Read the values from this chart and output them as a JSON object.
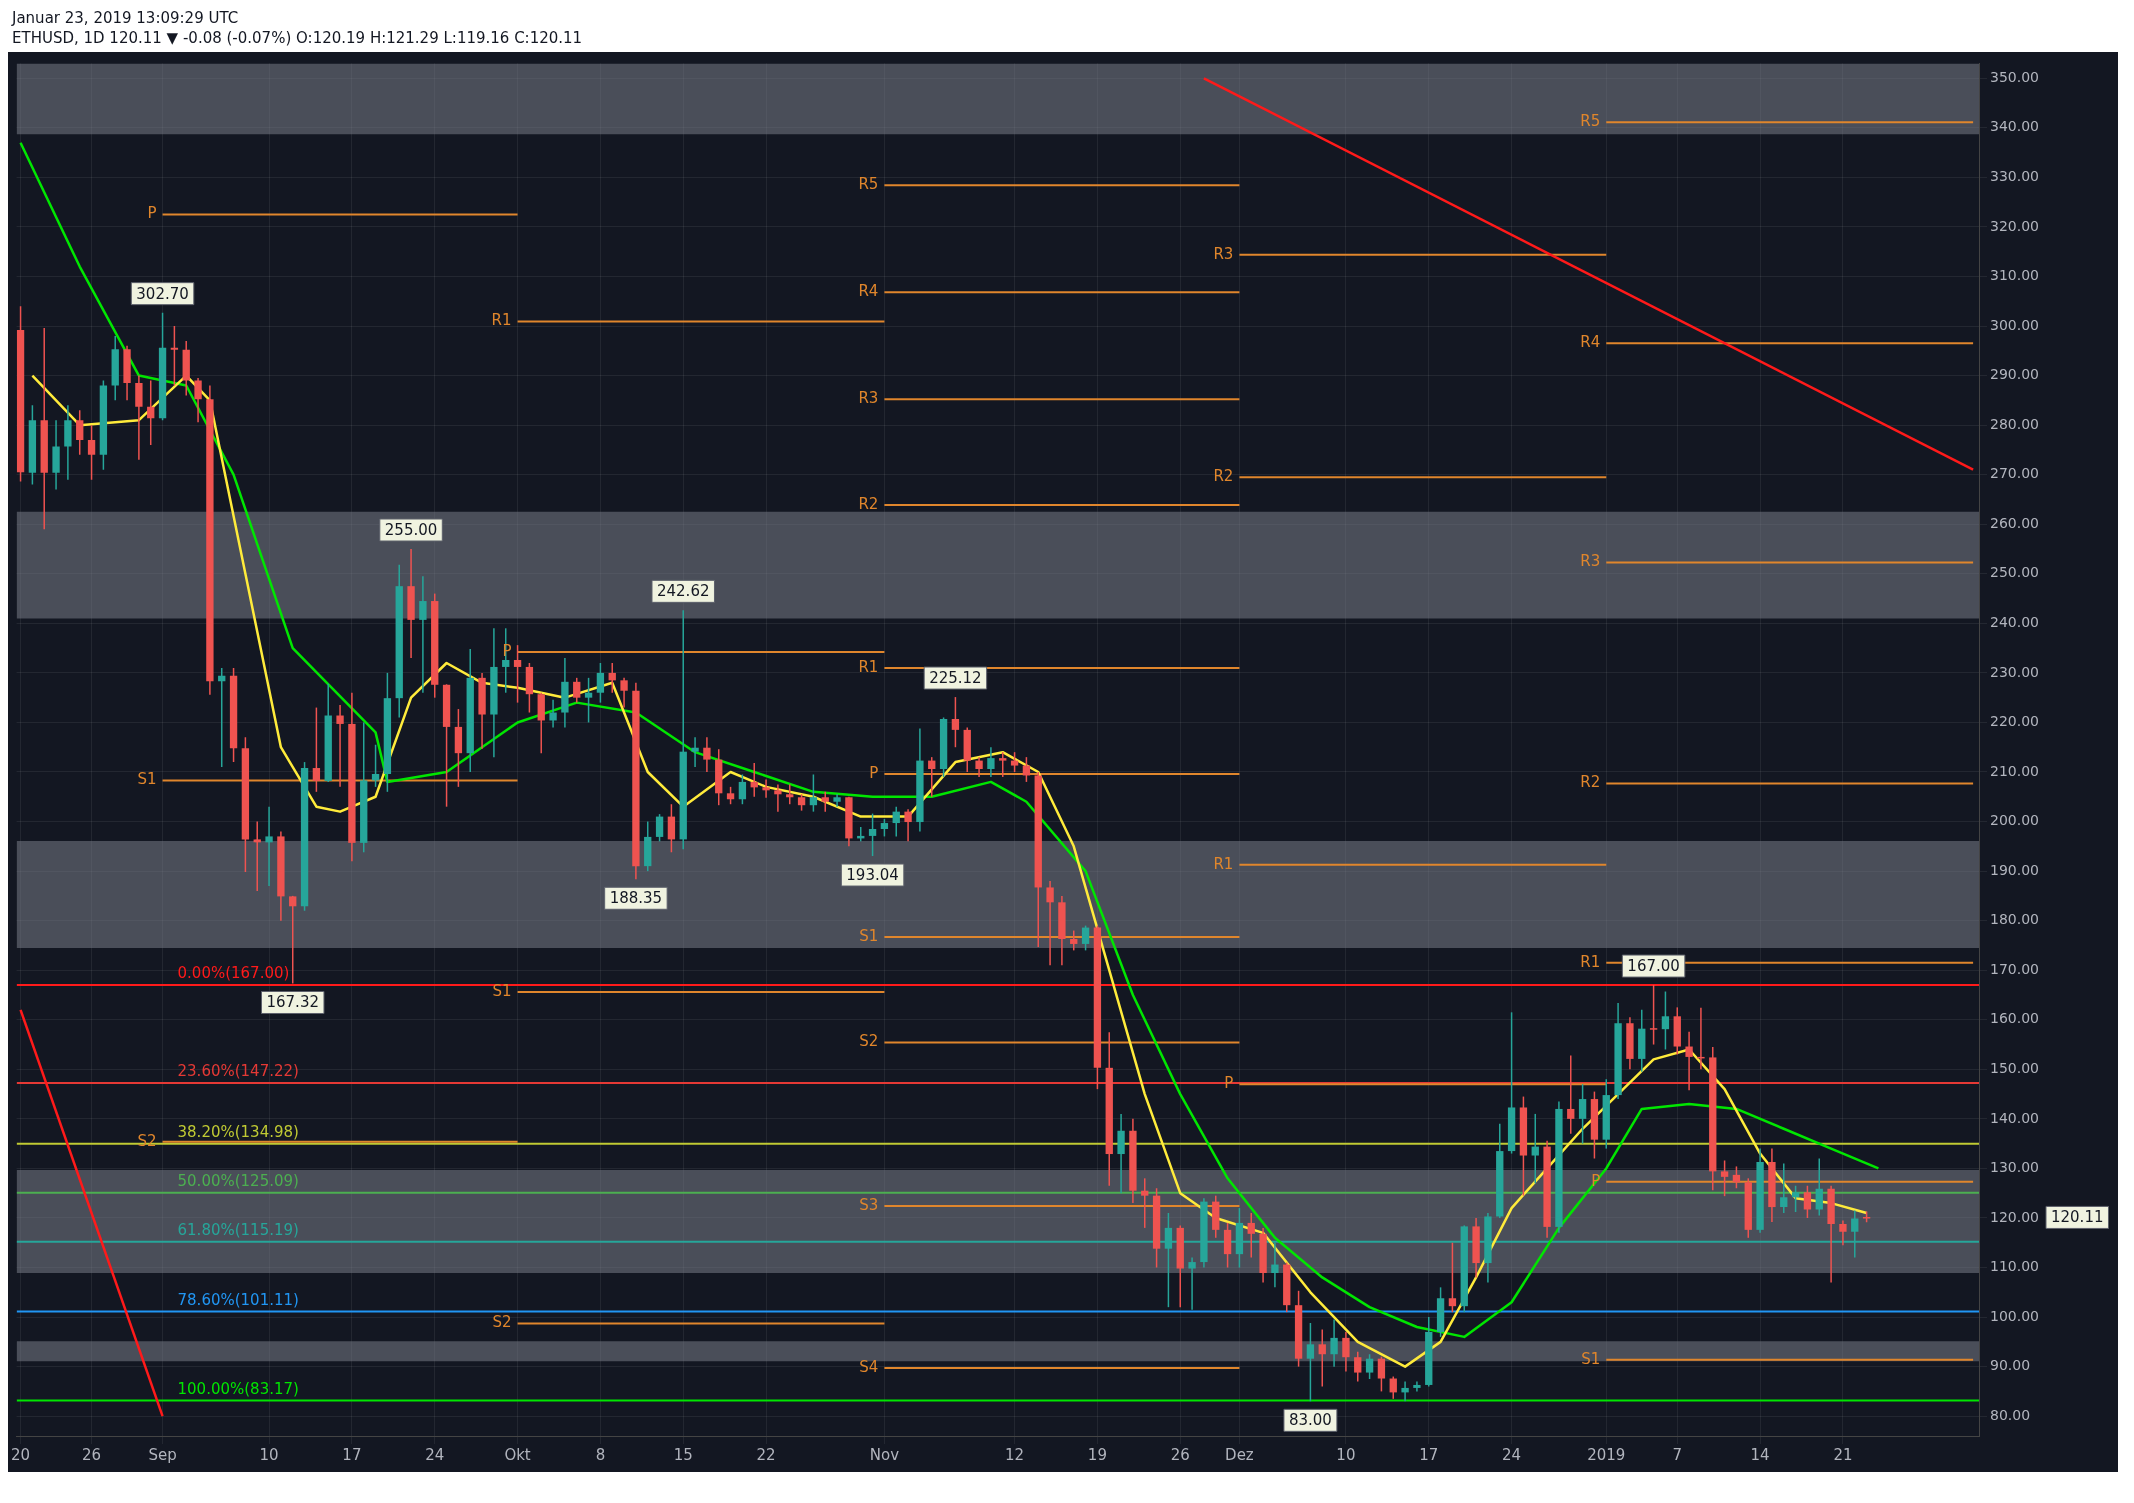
{
  "chart_data": {
    "type": "candlestick",
    "title": "Januar 23, 2019 13:09:29 UTC",
    "subtitle": "ETHUSD, 1D 120.11 ▼ -0.08 (-0.07%) O:120.19 H:121.29 L:119.16 C:120.11",
    "x": [
      "2018-08-20",
      "2018-08-21",
      "2018-08-22",
      "2018-08-23",
      "2018-08-24",
      "2018-08-25",
      "2018-08-26",
      "2018-08-27",
      "2018-08-28",
      "2018-08-29",
      "2018-08-30",
      "2018-08-31",
      "2018-09-01",
      "2018-09-02",
      "2018-09-03",
      "2018-09-04",
      "2018-09-05",
      "2018-09-06",
      "2018-09-07",
      "2018-09-08",
      "2018-09-09",
      "2018-09-10",
      "2018-09-11",
      "2018-09-12",
      "2018-09-13",
      "2018-09-14",
      "2018-09-15",
      "2018-09-16",
      "2018-09-17",
      "2018-09-18",
      "2018-09-19",
      "2018-09-20",
      "2018-09-21",
      "2018-09-22",
      "2018-09-23",
      "2018-09-24",
      "2018-09-25",
      "2018-09-26",
      "2018-09-27",
      "2018-09-28",
      "2018-09-29",
      "2018-09-30",
      "2018-10-01",
      "2018-10-02",
      "2018-10-03",
      "2018-10-04",
      "2018-10-05",
      "2018-10-06",
      "2018-10-07",
      "2018-10-08",
      "2018-10-09",
      "2018-10-10",
      "2018-10-11",
      "2018-10-12",
      "2018-10-13",
      "2018-10-14",
      "2018-10-15",
      "2018-10-16",
      "2018-10-17",
      "2018-10-18",
      "2018-10-19",
      "2018-10-20",
      "2018-10-21",
      "2018-10-22",
      "2018-10-23",
      "2018-10-24",
      "2018-10-25",
      "2018-10-26",
      "2018-10-27",
      "2018-10-28",
      "2018-10-29",
      "2018-10-30",
      "2018-10-31",
      "2018-11-01",
      "2018-11-02",
      "2018-11-03",
      "2018-11-04",
      "2018-11-05",
      "2018-11-06",
      "2018-11-07",
      "2018-11-08",
      "2018-11-09",
      "2018-11-10",
      "2018-11-11",
      "2018-11-12",
      "2018-11-13",
      "2018-11-14",
      "2018-11-15",
      "2018-11-16",
      "2018-11-17",
      "2018-11-18",
      "2018-11-19",
      "2018-11-20",
      "2018-11-21",
      "2018-11-22",
      "2018-11-23",
      "2018-11-24",
      "2018-11-25",
      "2018-11-26",
      "2018-11-27",
      "2018-11-28",
      "2018-11-29",
      "2018-11-30",
      "2018-12-01",
      "2018-12-02",
      "2018-12-03",
      "2018-12-04",
      "2018-12-05",
      "2018-12-06",
      "2018-12-07",
      "2018-12-08",
      "2018-12-09",
      "2018-12-10",
      "2018-12-11",
      "2018-12-12",
      "2018-12-13",
      "2018-12-14",
      "2018-12-15",
      "2018-12-16",
      "2018-12-17",
      "2018-12-18",
      "2018-12-19",
      "2018-12-20",
      "2018-12-21",
      "2018-12-22",
      "2018-12-23",
      "2018-12-24",
      "2018-12-25",
      "2018-12-26",
      "2018-12-27",
      "2018-12-28",
      "2018-12-29",
      "2018-12-30",
      "2018-12-31",
      "2019-01-01",
      "2019-01-02",
      "2019-01-03",
      "2019-01-04",
      "2019-01-05",
      "2019-01-06",
      "2019-01-07",
      "2019-01-08",
      "2019-01-09",
      "2019-01-10",
      "2019-01-11",
      "2019-01-12",
      "2019-01-13",
      "2019-01-14",
      "2019-01-15",
      "2019-01-16",
      "2019-01-17",
      "2019-01-18",
      "2019-01-19",
      "2019-01-20",
      "2019-01-21",
      "2019-01-22",
      "2019-01-23"
    ],
    "ohlc": [
      [
        299.2,
        304,
        268.6,
        270.5
      ],
      [
        270.4,
        284,
        268,
        281
      ],
      [
        281,
        299.6,
        259,
        270.4
      ],
      [
        270.4,
        281,
        267,
        275.7
      ],
      [
        275.7,
        284,
        269,
        281
      ],
      [
        281,
        283,
        274,
        277
      ],
      [
        277,
        280,
        269,
        274
      ],
      [
        274,
        289,
        271,
        288
      ],
      [
        288,
        298,
        285,
        295.3
      ],
      [
        295.3,
        296,
        285,
        288.5
      ],
      [
        288.5,
        290,
        273,
        283.7
      ],
      [
        283.7,
        289,
        276,
        281.4
      ],
      [
        281.4,
        302.7,
        281,
        295.6
      ],
      [
        295.6,
        300,
        288,
        295.2
      ],
      [
        295.2,
        297,
        286,
        289
      ],
      [
        289,
        289.5,
        280.6,
        285.2
      ],
      [
        285.2,
        288,
        225.6,
        228.3
      ],
      [
        228.3,
        231,
        211,
        229.4
      ],
      [
        229.4,
        231,
        212,
        214.8
      ],
      [
        214.8,
        217,
        189.8,
        196.4
      ],
      [
        196.4,
        200,
        186,
        195.8
      ],
      [
        195.8,
        203,
        187,
        197
      ],
      [
        197,
        198,
        180,
        184.9
      ],
      [
        184.9,
        185,
        167.32,
        182.9
      ],
      [
        182.9,
        212,
        182,
        210.8
      ],
      [
        210.8,
        223,
        206,
        208.2
      ],
      [
        208.2,
        227.8,
        208,
        221.4
      ],
      [
        221.4,
        223.5,
        207,
        219.7
      ],
      [
        219.7,
        226,
        192,
        195.7
      ],
      [
        195.7,
        220,
        193.8,
        208.3
      ],
      [
        208.3,
        215.5,
        207,
        209.6
      ],
      [
        209.6,
        230,
        206,
        224.9
      ],
      [
        224.9,
        251.8,
        221,
        247.5
      ],
      [
        247.5,
        255,
        233,
        240.7
      ],
      [
        240.7,
        249.5,
        226,
        244.5
      ],
      [
        244.5,
        246,
        225,
        227.6
      ],
      [
        227.6,
        227.7,
        203,
        219.1
      ],
      [
        219.1,
        222.7,
        207,
        213.8
      ],
      [
        213.8,
        234.8,
        210,
        229
      ],
      [
        229,
        230,
        214.7,
        221.6
      ],
      [
        221.6,
        239,
        213,
        231.2
      ],
      [
        231.2,
        239,
        226,
        232.6
      ],
      [
        232.6,
        235.6,
        224,
        231.2
      ],
      [
        231.2,
        232,
        222,
        225.7
      ],
      [
        225.7,
        226,
        213.8,
        220.4
      ],
      [
        220.4,
        224.6,
        219,
        222
      ],
      [
        222,
        233,
        219,
        228.2
      ],
      [
        228.2,
        229,
        224,
        225
      ],
      [
        225,
        229,
        220,
        226
      ],
      [
        226,
        232,
        224,
        230
      ],
      [
        230,
        232,
        226,
        228.5
      ],
      [
        228.5,
        229,
        223,
        226.4
      ],
      [
        226.4,
        228,
        188.35,
        191
      ],
      [
        191,
        200,
        190,
        196.9
      ],
      [
        196.9,
        201.5,
        196,
        201
      ],
      [
        201,
        203.5,
        193.8,
        196.4
      ],
      [
        196.4,
        242.62,
        194.4,
        214.1
      ],
      [
        214.1,
        217,
        211,
        214.9
      ],
      [
        214.9,
        217,
        210,
        212.5
      ],
      [
        212.5,
        214.6,
        203.3,
        205.7
      ],
      [
        205.7,
        207,
        203.5,
        204.5
      ],
      [
        204.5,
        209.5,
        203.5,
        208
      ],
      [
        208,
        211.8,
        205,
        206.9
      ],
      [
        206.9,
        208.5,
        204.8,
        206.3
      ],
      [
        206.3,
        207.5,
        202,
        205.5
      ],
      [
        205.5,
        207.5,
        203.5,
        204.9
      ],
      [
        204.9,
        205.5,
        202.2,
        203.3
      ],
      [
        203.3,
        209.5,
        202,
        204.9
      ],
      [
        204.9,
        206,
        202,
        204
      ],
      [
        204,
        205.5,
        203,
        204.9
      ],
      [
        204.9,
        205,
        195,
        196.6
      ],
      [
        196.6,
        198.9,
        196,
        197.1
      ],
      [
        197.1,
        201.6,
        193.04,
        198.5
      ],
      [
        198.5,
        200.5,
        197,
        199.7
      ],
      [
        199.7,
        203,
        197,
        202
      ],
      [
        202,
        202.5,
        196,
        199.9
      ],
      [
        199.9,
        218.8,
        198,
        212.3
      ],
      [
        212.3,
        213,
        205,
        210.6
      ],
      [
        210.6,
        221,
        209,
        220.7
      ],
      [
        220.7,
        225.12,
        215,
        218.5
      ],
      [
        218.5,
        219,
        210,
        212.3
      ],
      [
        212.3,
        213,
        209,
        210.6
      ],
      [
        210.6,
        215,
        209,
        212.8
      ],
      [
        212.8,
        214,
        209,
        212.3
      ],
      [
        212.3,
        214,
        210,
        211.3
      ],
      [
        211.3,
        213,
        208,
        209.3
      ],
      [
        209.3,
        210,
        174.7,
        186.7
      ],
      [
        186.7,
        188,
        171,
        183.7
      ],
      [
        183.7,
        185,
        171,
        176.3
      ],
      [
        176.3,
        178,
        174,
        175.3
      ],
      [
        175.3,
        179,
        174,
        178.6
      ],
      [
        178.6,
        179,
        146,
        150.3
      ],
      [
        150.3,
        157.5,
        126.5,
        132.9
      ],
      [
        132.9,
        141,
        125,
        137.6
      ],
      [
        137.6,
        140,
        123,
        125.5
      ],
      [
        125.5,
        128,
        118,
        124.5
      ],
      [
        124.5,
        126,
        110,
        113.8
      ],
      [
        113.8,
        121,
        102,
        118
      ],
      [
        118,
        118.5,
        102,
        109.8
      ],
      [
        109.8,
        112,
        101.5,
        111.1
      ],
      [
        111.1,
        124,
        110,
        123.3
      ],
      [
        123.3,
        124.5,
        116,
        117.6
      ],
      [
        117.6,
        119,
        110,
        112.7
      ],
      [
        112.7,
        122,
        110,
        119
      ],
      [
        119,
        121,
        112,
        116.8
      ],
      [
        116.8,
        118,
        107,
        108.9
      ],
      [
        108.9,
        115,
        106,
        110.6
      ],
      [
        110.6,
        111,
        101,
        102.4
      ],
      [
        102.4,
        105.3,
        90,
        91.6
      ],
      [
        91.6,
        98.8,
        83,
        94.5
      ],
      [
        94.5,
        97.5,
        86,
        92.5
      ],
      [
        92.5,
        99.5,
        90,
        95.8
      ],
      [
        95.8,
        97,
        89,
        91.9
      ],
      [
        91.9,
        93,
        87,
        88.8
      ],
      [
        88.8,
        92.5,
        87.5,
        91.6
      ],
      [
        91.6,
        92,
        85,
        87.6
      ],
      [
        87.6,
        88,
        83.5,
        84.8
      ],
      [
        84.8,
        87,
        83,
        85.7
      ],
      [
        85.7,
        87,
        85,
        86.3
      ],
      [
        86.3,
        100,
        86,
        97
      ],
      [
        97,
        106,
        96,
        103.8
      ],
      [
        103.8,
        115,
        101,
        102.2
      ],
      [
        102.2,
        118.5,
        101,
        118.3
      ],
      [
        118.3,
        120,
        108,
        110.9
      ],
      [
        110.9,
        121,
        107,
        120.3
      ],
      [
        120.3,
        139,
        120,
        133.5
      ],
      [
        133.5,
        161.5,
        133,
        142.3
      ],
      [
        142.3,
        144.5,
        124.5,
        132.6
      ],
      [
        132.6,
        141,
        127,
        134.4
      ],
      [
        134.4,
        135.6,
        116,
        118.2
      ],
      [
        118.2,
        143.5,
        117,
        142
      ],
      [
        142,
        152.8,
        137,
        140
      ],
      [
        140,
        147,
        135,
        144
      ],
      [
        144,
        145.5,
        132,
        135.8
      ],
      [
        135.8,
        148,
        134,
        144.8
      ],
      [
        144.8,
        163.4,
        144,
        159.3
      ],
      [
        159.3,
        160.5,
        150,
        152.1
      ],
      [
        152.1,
        162,
        149.5,
        158.2
      ],
      [
        158.3,
        167,
        155,
        158.1
      ],
      [
        158.1,
        165.7,
        154,
        160.7
      ],
      [
        160.7,
        162.5,
        153,
        154.6
      ],
      [
        154.6,
        157.6,
        145.8,
        152.5
      ],
      [
        152.5,
        162.4,
        150,
        152.4
      ],
      [
        152.4,
        154.5,
        125.6,
        129.4
      ],
      [
        129.4,
        131.6,
        124.4,
        128.3
      ],
      [
        128.7,
        130.4,
        126,
        127.2
      ],
      [
        127.2,
        128,
        116,
        117.6
      ],
      [
        117.6,
        134,
        117,
        131.3
      ],
      [
        131.3,
        134,
        119.2,
        122.2
      ],
      [
        122.2,
        131,
        121,
        124.2
      ],
      [
        124.2,
        126.5,
        121.2,
        125.2
      ],
      [
        125.2,
        126.5,
        120,
        121.7
      ],
      [
        121.7,
        132,
        120.5,
        125.9
      ],
      [
        125.9,
        126.5,
        107,
        118.8
      ],
      [
        118.8,
        119.5,
        114.5,
        117.2
      ],
      [
        117.2,
        121.5,
        112,
        119.9
      ],
      [
        120.19,
        121.29,
        119.16,
        120.11
      ]
    ],
    "series": [
      {
        "type": "line",
        "color": "#ffeb3b",
        "x": [
          "2018-08-21",
          "2018-08-25",
          "2018-08-30",
          "2018-09-03",
          "2018-09-05",
          "2018-09-08",
          "2018-09-11",
          "2018-09-14",
          "2018-09-16",
          "2018-09-19",
          "2018-09-22",
          "2018-09-25",
          "2018-09-28",
          "2018-10-01",
          "2018-10-05",
          "2018-10-09",
          "2018-10-12",
          "2018-10-15",
          "2018-10-19",
          "2018-10-22",
          "2018-10-26",
          "2018-10-30",
          "2018-11-03",
          "2018-11-07",
          "2018-11-11",
          "2018-11-14",
          "2018-11-17",
          "2018-11-20",
          "2018-11-23",
          "2018-11-26",
          "2018-11-29",
          "2018-12-03",
          "2018-12-07",
          "2018-12-11",
          "2018-12-15",
          "2018-12-18",
          "2018-12-21",
          "2018-12-24",
          "2018-12-27",
          "2018-12-30",
          "2019-01-02",
          "2019-01-05",
          "2019-01-08",
          "2019-01-11",
          "2019-01-14",
          "2019-01-17",
          "2019-01-20",
          "2019-01-23"
        ],
        "values": [
          290,
          280,
          281,
          290,
          285,
          250,
          215,
          203,
          202,
          205,
          225,
          232,
          228,
          227,
          225,
          228,
          210,
          203,
          210,
          207,
          205,
          201,
          201,
          212,
          214,
          210,
          195,
          170,
          145,
          125,
          120,
          117,
          105,
          95,
          90,
          95,
          108,
          122,
          130,
          138,
          145,
          152,
          154,
          146,
          133,
          124,
          123,
          121
        ]
      },
      {
        "type": "line",
        "color": "#00e600",
        "x": [
          "2018-08-20",
          "2018-08-25",
          "2018-08-30",
          "2018-09-03",
          "2018-09-07",
          "2018-09-12",
          "2018-09-19",
          "2018-09-20",
          "2018-09-25",
          "2018-10-01",
          "2018-10-06",
          "2018-10-11",
          "2018-10-16",
          "2018-10-21",
          "2018-10-26",
          "2018-10-31",
          "2018-11-05",
          "2018-11-10",
          "2018-11-13",
          "2018-11-18",
          "2018-11-22",
          "2018-11-26",
          "2018-11-30",
          "2018-12-04",
          "2018-12-08",
          "2018-12-12",
          "2018-12-16",
          "2018-12-20",
          "2018-12-24",
          "2018-12-28",
          "2019-01-01",
          "2019-01-04",
          "2019-01-08",
          "2019-01-12",
          "2019-01-16",
          "2019-01-20",
          "2019-01-24"
        ],
        "values": [
          337,
          312,
          290,
          288,
          270,
          235,
          218,
          208,
          210,
          220,
          224,
          222,
          214,
          210,
          206,
          205,
          205,
          208,
          204,
          190,
          165,
          145,
          128,
          116,
          108,
          102,
          98,
          96,
          103,
          118,
          130,
          142,
          143,
          142,
          138,
          134,
          130
        ]
      },
      {
        "type": "line",
        "color": "#ff1a1a",
        "x": [
          "2018-11-28",
          "2019-02-01"
        ],
        "values": [
          350,
          271
        ]
      },
      {
        "type": "line",
        "color": "#ff1a1a",
        "x": [
          "2018-08-20",
          "2018-09-01"
        ],
        "values": [
          162,
          80
        ]
      },
      {
        "type": "line",
        "name": "P",
        "color": "#e0862c",
        "x": [
          "2018-09-01",
          "2018-10-01"
        ],
        "values": [
          322.5,
          322.5
        ]
      },
      {
        "type": "line",
        "name": "S1",
        "color": "#e0862c",
        "x": [
          "2018-09-01",
          "2018-10-01"
        ],
        "values": [
          208.3,
          208.3
        ]
      },
      {
        "type": "line",
        "name": "S2",
        "color": "#e0862c",
        "x": [
          "2018-09-01",
          "2018-10-01"
        ],
        "values": [
          135.4,
          135.4
        ]
      },
      {
        "type": "line",
        "name": "R1",
        "color": "#e0862c",
        "x": [
          "2018-10-01",
          "2018-11-01"
        ],
        "values": [
          300.9,
          300.9
        ]
      },
      {
        "type": "line",
        "name": "P",
        "color": "#e0862c",
        "x": [
          "2018-10-01",
          "2018-11-01"
        ],
        "values": [
          234.2,
          234.2
        ]
      },
      {
        "type": "line",
        "name": "S1",
        "color": "#e0862c",
        "x": [
          "2018-10-01",
          "2018-11-01"
        ],
        "values": [
          165.6,
          165.6
        ]
      },
      {
        "type": "line",
        "name": "S2",
        "color": "#e0862c",
        "x": [
          "2018-10-01",
          "2018-11-01"
        ],
        "values": [
          98.7,
          98.7
        ]
      },
      {
        "type": "line",
        "name": "R5",
        "color": "#e0862c",
        "x": [
          "2018-11-01",
          "2018-12-01"
        ],
        "values": [
          328.4,
          328.4
        ]
      },
      {
        "type": "line",
        "name": "R4",
        "color": "#e0862c",
        "x": [
          "2018-11-01",
          "2018-12-01"
        ],
        "values": [
          306.8,
          306.8
        ]
      },
      {
        "type": "line",
        "name": "R3",
        "color": "#e0862c",
        "x": [
          "2018-11-01",
          "2018-12-01"
        ],
        "values": [
          285.2,
          285.2
        ]
      },
      {
        "type": "line",
        "name": "R2",
        "color": "#e0862c",
        "x": [
          "2018-11-01",
          "2018-12-01"
        ],
        "values": [
          263.9,
          263.9
        ]
      },
      {
        "type": "line",
        "name": "R1",
        "color": "#e0862c",
        "x": [
          "2018-11-01",
          "2018-12-01"
        ],
        "values": [
          231,
          231
        ]
      },
      {
        "type": "line",
        "name": "P",
        "color": "#e0862c",
        "x": [
          "2018-11-01",
          "2018-12-01"
        ],
        "values": [
          209.6,
          209.6
        ]
      },
      {
        "type": "line",
        "name": "S1",
        "color": "#e0862c",
        "x": [
          "2018-11-01",
          "2018-12-01"
        ],
        "values": [
          176.7,
          176.7
        ]
      },
      {
        "type": "line",
        "name": "S2",
        "color": "#e0862c",
        "x": [
          "2018-11-01",
          "2018-12-01"
        ],
        "values": [
          155.4,
          155.4
        ]
      },
      {
        "type": "line",
        "name": "S3",
        "color": "#e0862c",
        "x": [
          "2018-11-01",
          "2018-12-01"
        ],
        "values": [
          122.4,
          122.4
        ]
      },
      {
        "type": "line",
        "name": "S4",
        "color": "#e0862c",
        "x": [
          "2018-11-01",
          "2018-12-01"
        ],
        "values": [
          89.7,
          89.7
        ]
      },
      {
        "type": "line",
        "name": "R3",
        "color": "#e0862c",
        "x": [
          "2018-12-01",
          "2019-01-01"
        ],
        "values": [
          314.4,
          314.4
        ]
      },
      {
        "type": "line",
        "name": "R2",
        "color": "#e0862c",
        "x": [
          "2018-12-01",
          "2019-01-01"
        ],
        "values": [
          269.5,
          269.5
        ]
      },
      {
        "type": "line",
        "name": "R1",
        "color": "#e0862c",
        "x": [
          "2018-12-01",
          "2019-01-01"
        ],
        "values": [
          191.3,
          191.3
        ]
      },
      {
        "type": "line",
        "name": "P",
        "color": "#e0862c",
        "x": [
          "2018-12-01",
          "2019-01-01"
        ],
        "values": [
          147,
          147
        ]
      },
      {
        "type": "line",
        "name": "R5",
        "color": "#e0862c",
        "x": [
          "2019-01-01",
          "2019-02-01"
        ],
        "values": [
          341.1,
          341.1
        ]
      },
      {
        "type": "line",
        "name": "R4",
        "color": "#e0862c",
        "x": [
          "2019-01-01",
          "2019-02-01"
        ],
        "values": [
          296.5,
          296.5
        ]
      },
      {
        "type": "line",
        "name": "R3",
        "color": "#e0862c",
        "x": [
          "2019-01-01",
          "2019-02-01"
        ],
        "values": [
          252.3,
          252.3
        ]
      },
      {
        "type": "line",
        "name": "R2",
        "color": "#e0862c",
        "x": [
          "2019-01-01",
          "2019-02-01"
        ],
        "values": [
          207.7,
          207.7
        ]
      },
      {
        "type": "line",
        "name": "R1",
        "color": "#e0862c",
        "x": [
          "2019-01-01",
          "2019-02-01"
        ],
        "values": [
          171.5,
          171.5
        ]
      },
      {
        "type": "line",
        "name": "P",
        "color": "#e0862c",
        "x": [
          "2019-01-01",
          "2019-02-01"
        ],
        "values": [
          127.3,
          127.3
        ]
      },
      {
        "type": "line",
        "name": "S1",
        "color": "#e0862c",
        "x": [
          "2019-01-01",
          "2019-02-01"
        ],
        "values": [
          91.4,
          91.4
        ]
      }
    ],
    "xlim": [
      "2018-08-19T16:00",
      "2019-02-01T12:00"
    ],
    "xticks": [
      {
        "value": "2018-08-20",
        "label": "20"
      },
      {
        "value": "2018-08-26",
        "label": "26"
      },
      {
        "value": "2018-09-01",
        "label": "Sep"
      },
      {
        "value": "2018-09-10",
        "label": "10"
      },
      {
        "value": "2018-09-17",
        "label": "17"
      },
      {
        "value": "2018-09-24",
        "label": "24"
      },
      {
        "value": "2018-10-01",
        "label": "Okt"
      },
      {
        "value": "2018-10-08",
        "label": "8"
      },
      {
        "value": "2018-10-15",
        "label": "15"
      },
      {
        "value": "2018-10-22",
        "label": "22"
      },
      {
        "value": "2018-11-01",
        "label": "Nov"
      },
      {
        "value": "2018-11-12",
        "label": "12"
      },
      {
        "value": "2018-11-19",
        "label": "19"
      },
      {
        "value": "2018-11-26",
        "label": "26"
      },
      {
        "value": "2018-12-01",
        "label": "Dez"
      },
      {
        "value": "2018-12-10",
        "label": "10"
      },
      {
        "value": "2018-12-17",
        "label": "17"
      },
      {
        "value": "2018-12-24",
        "label": "24"
      },
      {
        "value": "2019-01-01",
        "label": "2019"
      },
      {
        "value": "2019-01-07",
        "label": "7"
      },
      {
        "value": "2019-01-14",
        "label": "14"
      },
      {
        "value": "2019-01-21",
        "label": "21"
      }
    ],
    "ylim": [
      76,
      353
    ],
    "yticks": [
      {
        "value": 80,
        "label": "80.00"
      },
      {
        "value": 90,
        "label": "90.00"
      },
      {
        "value": 100,
        "label": "100.00"
      },
      {
        "value": 110,
        "label": "110.00"
      },
      {
        "value": 120,
        "label": "120.00"
      },
      {
        "value": 130,
        "label": "130.00"
      },
      {
        "value": 140,
        "label": "140.00"
      },
      {
        "value": 150,
        "label": "150.00"
      },
      {
        "value": 160,
        "label": "160.00"
      },
      {
        "value": 170,
        "label": "170.00"
      },
      {
        "value": 180,
        "label": "180.00"
      },
      {
        "value": 190,
        "label": "190.00"
      },
      {
        "value": 200,
        "label": "200.00"
      },
      {
        "value": 210,
        "label": "210.00"
      },
      {
        "value": 220,
        "label": "220.00"
      },
      {
        "value": 230,
        "label": "230.00"
      },
      {
        "value": 240,
        "label": "240.00"
      },
      {
        "value": 250,
        "label": "250.00"
      },
      {
        "value": 260,
        "label": "260.00"
      },
      {
        "value": 270,
        "label": "270.00"
      },
      {
        "value": 280,
        "label": "280.00"
      },
      {
        "value": 290,
        "label": "290.00"
      },
      {
        "value": 300,
        "label": "300.00"
      },
      {
        "value": 310,
        "label": "310.00"
      },
      {
        "value": 320,
        "label": "320.00"
      },
      {
        "value": 330,
        "label": "330.00"
      },
      {
        "value": 340,
        "label": "340.00"
      },
      {
        "value": 350,
        "label": "350.00"
      }
    ],
    "grid": true,
    "legend": false,
    "bands": [
      {
        "axis": "y",
        "from": 338.7,
        "to": 353,
        "color": "#787b86"
      },
      {
        "axis": "y",
        "from": 241,
        "to": 262.5,
        "color": "#787b86"
      },
      {
        "axis": "y",
        "from": 174.5,
        "to": 196.1,
        "color": "#787b86"
      },
      {
        "axis": "y",
        "from": 108.9,
        "to": 129.7,
        "color": "#787b86"
      },
      {
        "axis": "y",
        "from": 91.1,
        "to": 95.1,
        "color": "#787b86"
      }
    ],
    "ref_lines": [
      {
        "axis": "y",
        "value": 167,
        "label": "0.00%(167.00)",
        "color": "#ff1a1a"
      },
      {
        "axis": "y",
        "value": 147.22,
        "label": "23.60%(147.22)",
        "color": "#e53935"
      },
      {
        "axis": "y",
        "value": 134.98,
        "label": "38.20%(134.98)",
        "color": "#c0ca33"
      },
      {
        "axis": "y",
        "value": 125.09,
        "label": "50.00%(125.09)",
        "color": "#4caf50"
      },
      {
        "axis": "y",
        "value": 115.19,
        "label": "61.80%(115.19)",
        "color": "#26a69a"
      },
      {
        "axis": "y",
        "value": 101.11,
        "label": "78.60%(101.11)",
        "color": "#2196f3"
      },
      {
        "axis": "y",
        "value": 83.17,
        "label": "100.00%(83.17)",
        "color": "#00e600"
      }
    ],
    "annotations": [
      {
        "text": "302.70",
        "x": "2018-09-01",
        "y": 302.7
      },
      {
        "text": "255.00",
        "x": "2018-09-22",
        "y": 255
      },
      {
        "text": "242.62",
        "x": "2018-10-15",
        "y": 242.62
      },
      {
        "text": "188.35",
        "x": "2018-10-11",
        "y": 188.35
      },
      {
        "text": "193.04",
        "x": "2018-10-31",
        "y": 193.04
      },
      {
        "text": "225.12",
        "x": "2018-11-07",
        "y": 225.12
      },
      {
        "text": "167.32",
        "x": "2018-09-12",
        "y": 167.32
      },
      {
        "text": "83.00",
        "x": "2018-12-07",
        "y": 83
      },
      {
        "text": "167.00",
        "x": "2019-01-05",
        "y": 167
      },
      "120.11"
    ]
  }
}
